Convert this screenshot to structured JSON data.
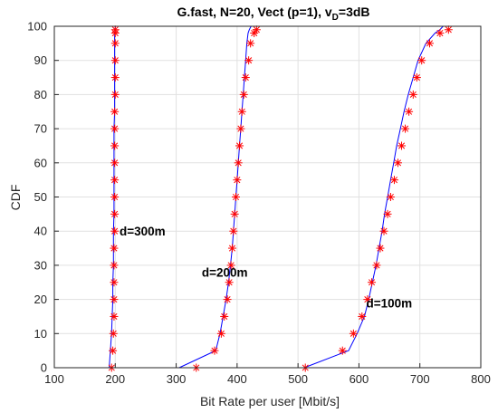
{
  "chart_data": {
    "type": "line",
    "title_main": "G.fast, N=20, Vect (p=1), v",
    "title_sub": "D",
    "title_tail": "=3dB",
    "xlabel": "Bit Rate per user [Mbit/s]",
    "ylabel": "CDF",
    "xlim": [
      100,
      800
    ],
    "ylim": [
      0,
      100
    ],
    "xticks": [
      100,
      200,
      300,
      400,
      500,
      600,
      700,
      800
    ],
    "yticks": [
      0,
      10,
      20,
      30,
      40,
      50,
      60,
      70,
      80,
      90,
      100
    ],
    "grid": true,
    "line_color": "#0000ff",
    "marker_color": "#ff0000",
    "annotations": [
      {
        "text": "d=300m",
        "x": 207,
        "y": 40
      },
      {
        "text": "d=200m",
        "x": 342,
        "y": 28
      },
      {
        "text": "d=100m",
        "x": 612,
        "y": 19
      }
    ],
    "series": [
      {
        "line_x": [
          190,
          192,
          194,
          195,
          196,
          196,
          197,
          197,
          197,
          198,
          198,
          198,
          198,
          198,
          198,
          199,
          199,
          199,
          199,
          199,
          199,
          200,
          200
        ],
        "line_y": [
          0,
          5,
          10,
          15,
          20,
          25,
          30,
          35,
          40,
          45,
          50,
          55,
          60,
          65,
          70,
          75,
          80,
          85,
          90,
          95,
          97,
          99,
          100
        ],
        "marker_x": [
          194,
          196,
          197,
          198,
          198,
          198,
          198,
          198,
          199,
          199,
          199,
          199,
          199,
          199,
          199,
          199,
          200,
          200,
          200,
          200,
          200,
          200
        ],
        "marker_y": [
          0,
          5,
          10,
          15,
          20,
          25,
          30,
          35,
          40,
          45,
          50,
          55,
          60,
          65,
          70,
          75,
          80,
          85,
          90,
          95,
          98,
          99
        ]
      },
      {
        "line_x": [
          305,
          365,
          372,
          377,
          382,
          386,
          389,
          392,
          394,
          396,
          398,
          400,
          402,
          404,
          406,
          408,
          410,
          412,
          414,
          416,
          418,
          420,
          423
        ],
        "line_y": [
          0,
          5,
          10,
          15,
          20,
          25,
          30,
          35,
          40,
          45,
          50,
          55,
          60,
          65,
          70,
          75,
          80,
          85,
          90,
          95,
          98,
          99,
          100
        ],
        "marker_x": [
          333,
          363,
          374,
          379,
          384,
          387,
          390,
          392,
          394,
          396,
          398,
          400,
          402,
          404,
          406,
          408,
          411,
          414,
          419,
          422,
          428,
          432
        ],
        "marker_y": [
          0,
          5,
          10,
          15,
          20,
          25,
          30,
          35,
          40,
          45,
          50,
          55,
          60,
          65,
          70,
          75,
          80,
          85,
          90,
          95,
          98,
          99
        ]
      },
      {
        "line_x": [
          510,
          583,
          597,
          609,
          616,
          622,
          628,
          633,
          638,
          642,
          647,
          652,
          657,
          662,
          668,
          674,
          681,
          689,
          697,
          710,
          725,
          733,
          738
        ],
        "line_y": [
          0,
          5,
          10,
          15,
          20,
          25,
          30,
          35,
          40,
          45,
          50,
          55,
          60,
          65,
          70,
          75,
          80,
          85,
          90,
          95,
          98,
          99,
          100
        ],
        "marker_x": [
          512,
          573,
          591,
          605,
          614,
          621,
          629,
          635,
          641,
          647,
          652,
          658,
          664,
          670,
          676,
          682,
          689,
          695,
          703,
          716,
          733,
          747
        ],
        "marker_y": [
          0,
          5,
          10,
          15,
          20,
          25,
          30,
          35,
          40,
          45,
          50,
          55,
          60,
          65,
          70,
          75,
          80,
          85,
          90,
          95,
          98,
          99
        ]
      }
    ]
  }
}
